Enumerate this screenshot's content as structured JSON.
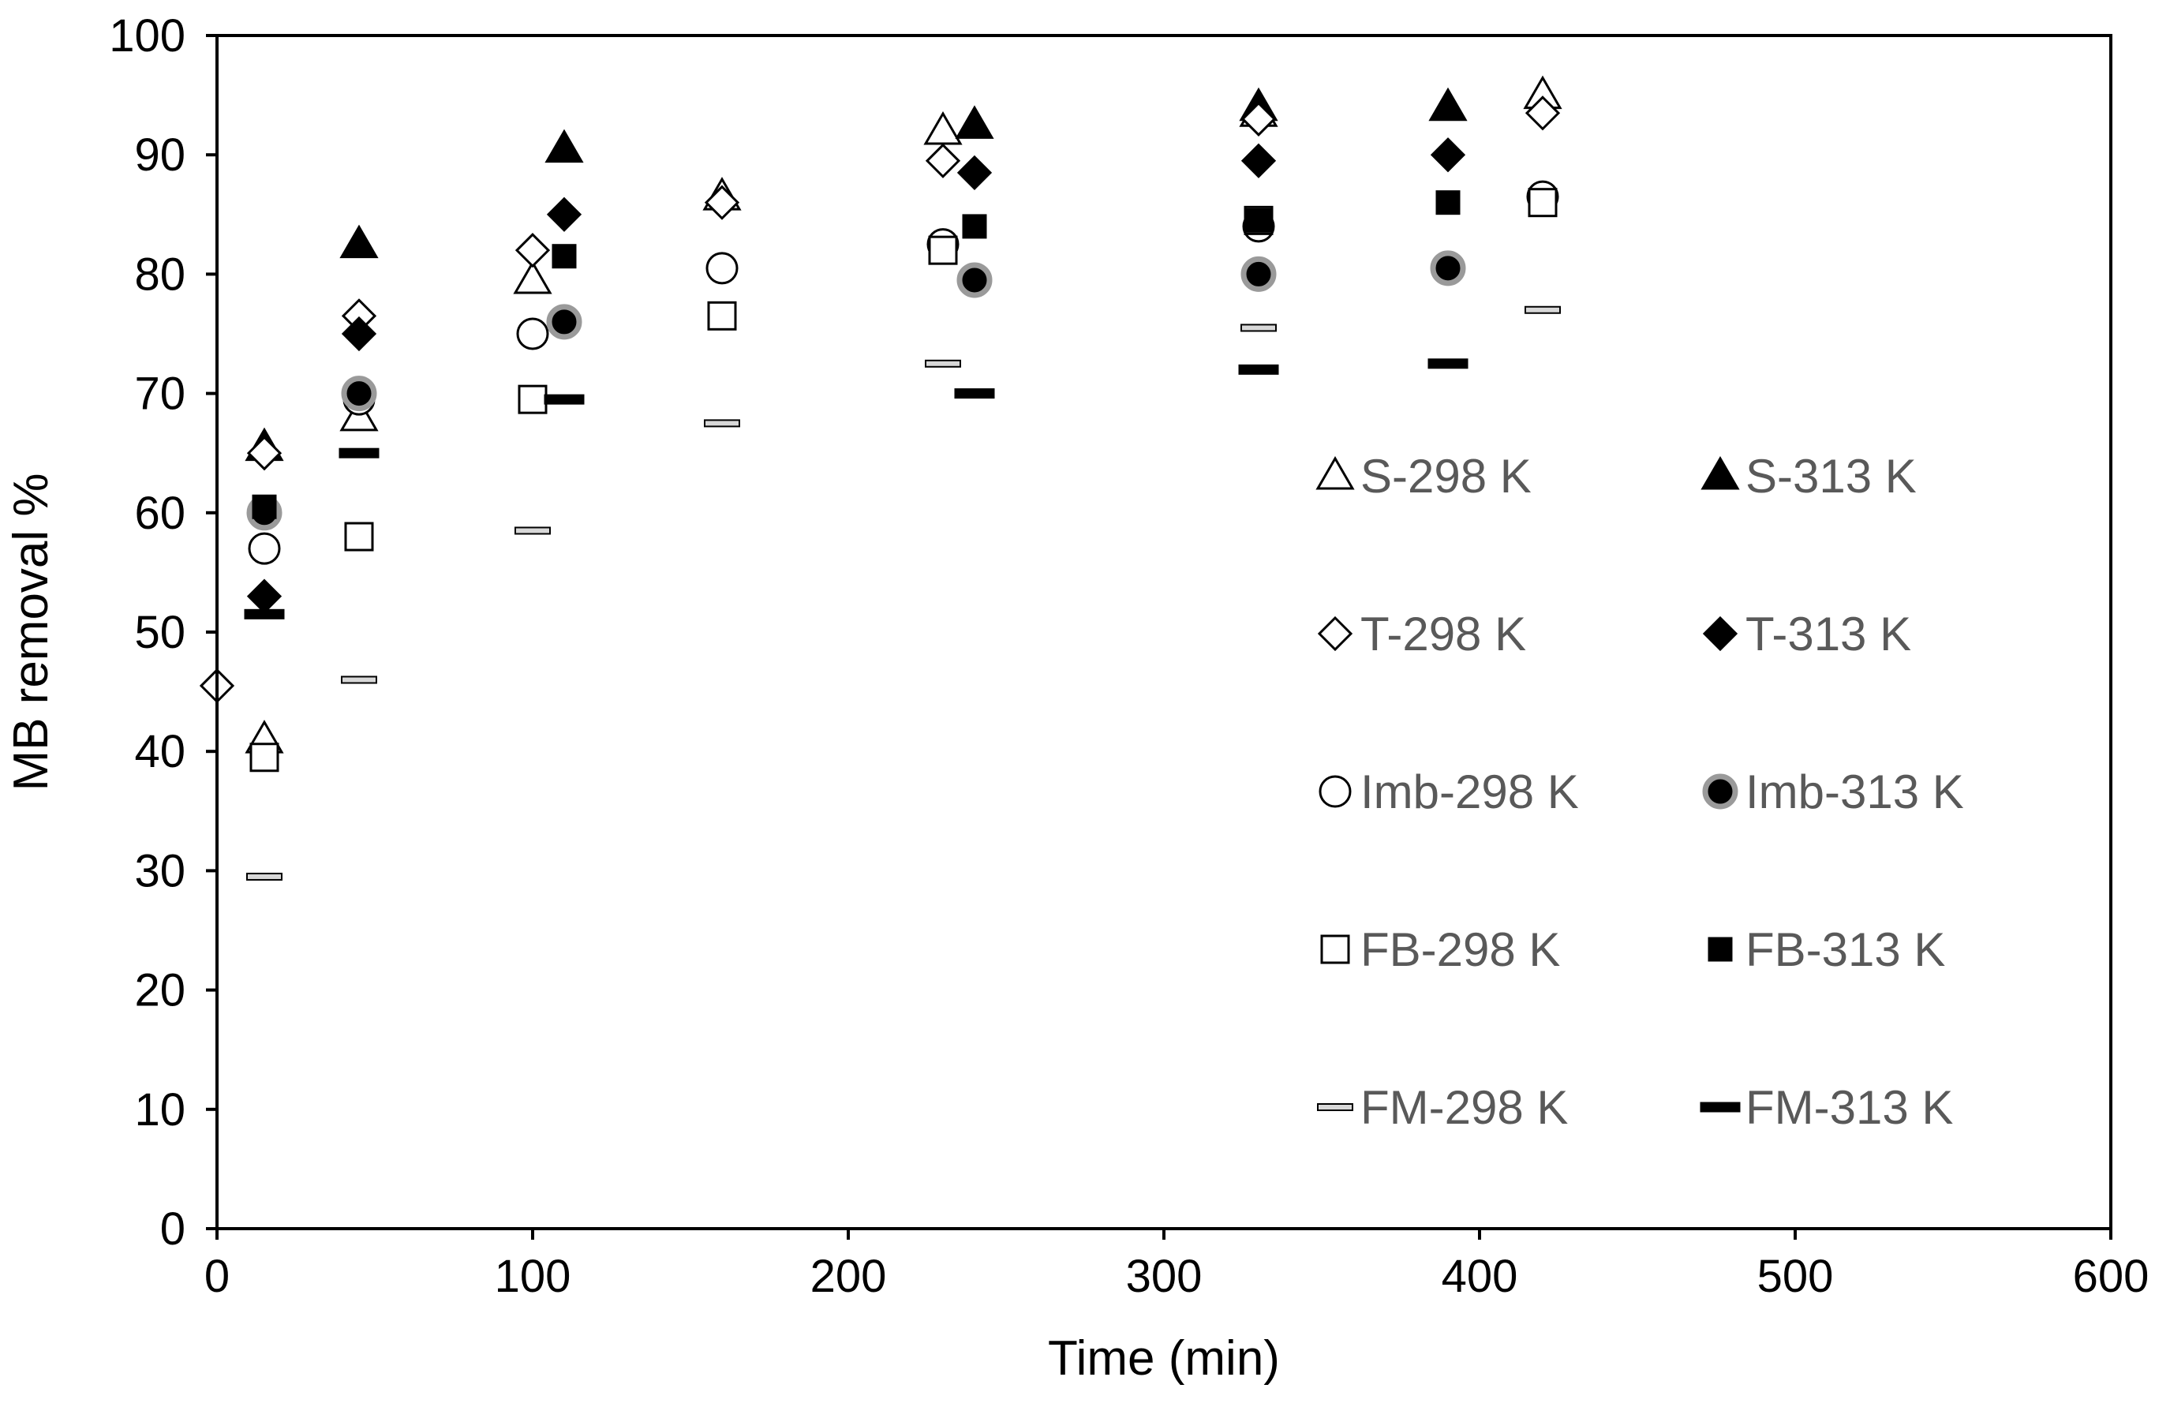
{
  "chart_data": {
    "type": "scatter",
    "title": "",
    "xlabel": "Time (min)",
    "ylabel": "MB removal %",
    "xlim": [
      0,
      600
    ],
    "ylim": [
      0,
      100
    ],
    "xticks": [
      0,
      100,
      200,
      300,
      400,
      500,
      600
    ],
    "yticks": [
      0,
      10,
      20,
      30,
      40,
      50,
      60,
      70,
      80,
      90,
      100
    ],
    "grid": false,
    "legend_position": "center-right",
    "series": [
      {
        "name": "S-298 K",
        "marker": "triangle-open",
        "x": [
          15,
          45,
          100,
          160,
          230,
          330,
          420
        ],
        "y": [
          41,
          68,
          79.5,
          86.5,
          92,
          93.5,
          95
        ]
      },
      {
        "name": "S-313 K",
        "marker": "triangle-filled",
        "x": [
          15,
          45,
          110,
          240,
          330,
          390
        ],
        "y": [
          65.5,
          82.5,
          90.5,
          92.5,
          94,
          94
        ]
      },
      {
        "name": "T-298 K",
        "marker": "diamond-open",
        "x": [
          0,
          15,
          45,
          100,
          160,
          230,
          330,
          420
        ],
        "y": [
          45.5,
          65,
          76.5,
          82,
          86,
          89.5,
          93,
          93.5
        ]
      },
      {
        "name": "T-313 K",
        "marker": "diamond-filled",
        "x": [
          15,
          45,
          110,
          240,
          330,
          390
        ],
        "y": [
          53,
          75,
          85,
          88.5,
          89.5,
          90
        ]
      },
      {
        "name": "Imb-298 K",
        "marker": "circle-open",
        "x": [
          15,
          45,
          100,
          160,
          230,
          330,
          420
        ],
        "y": [
          57,
          69.5,
          75,
          80.5,
          82.5,
          84,
          86.5
        ]
      },
      {
        "name": "Imb-313 K",
        "marker": "circle-filled-grey-ring",
        "x": [
          15,
          45,
          110,
          240,
          330,
          390
        ],
        "y": [
          60,
          70,
          76,
          79.5,
          80,
          80.5
        ]
      },
      {
        "name": "FB-298 K",
        "marker": "square-open",
        "x": [
          15,
          45,
          100,
          160,
          230,
          330,
          420
        ],
        "y": [
          39.5,
          58,
          69.5,
          76.5,
          82,
          84.5,
          86
        ]
      },
      {
        "name": "FB-313 K",
        "marker": "square-filled",
        "x": [
          15,
          110,
          240,
          330,
          390
        ],
        "y": [
          60.5,
          81.5,
          84,
          84.5,
          86
        ]
      },
      {
        "name": "FM-298 K",
        "marker": "dash-open",
        "x": [
          15,
          45,
          100,
          160,
          230,
          330,
          420
        ],
        "y": [
          29.5,
          46,
          58.5,
          67.5,
          72.5,
          75.5,
          77
        ]
      },
      {
        "name": "FM-313 K",
        "marker": "dash-filled",
        "x": [
          15,
          45,
          110,
          240,
          330,
          390
        ],
        "y": [
          51.5,
          65,
          69.5,
          70,
          72,
          72.5
        ]
      }
    ]
  }
}
